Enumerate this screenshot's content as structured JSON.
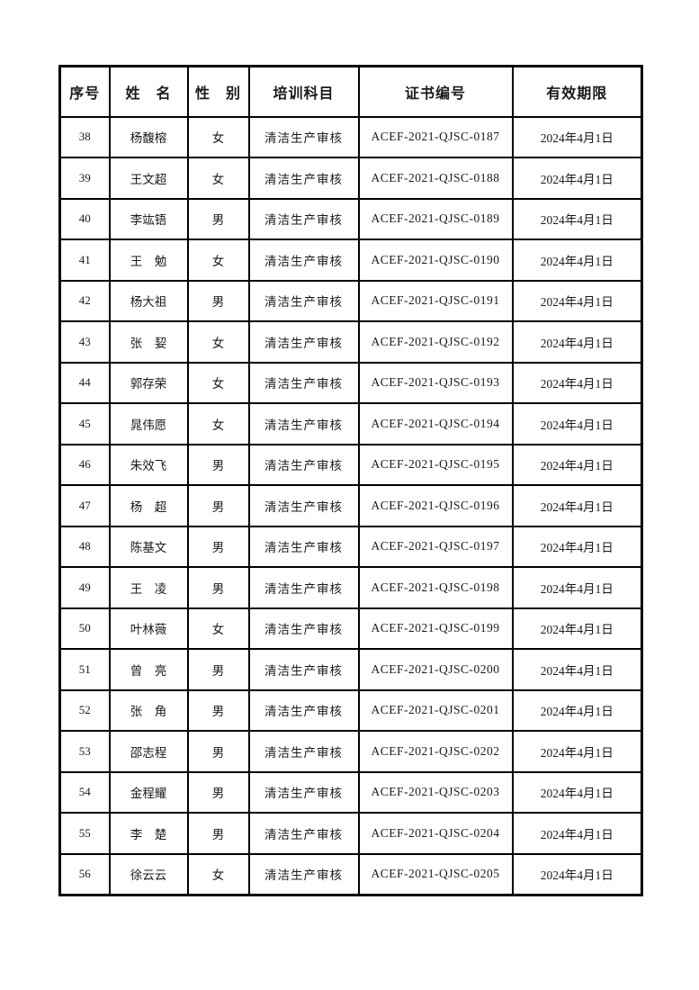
{
  "page": {
    "background_color": "#ffffff",
    "text_color": "#1a1a1a",
    "border_color": "#000000"
  },
  "table": {
    "headers": [
      "序号",
      "姓　名",
      "性　别",
      "培训科目",
      "证书编号",
      "有效期限"
    ],
    "rows": [
      {
        "no": "38",
        "name": "杨馥榕",
        "gender": "女",
        "subject": "清洁生产审核",
        "cert": "ACEF-2021-QJSC-0187",
        "expiry": "2024年4月1日"
      },
      {
        "no": "39",
        "name": "王文超",
        "gender": "女",
        "subject": "清洁生产审核",
        "cert": "ACEF-2021-QJSC-0188",
        "expiry": "2024年4月1日"
      },
      {
        "no": "40",
        "name": "李竑铻",
        "gender": "男",
        "subject": "清洁生产审核",
        "cert": "ACEF-2021-QJSC-0189",
        "expiry": "2024年4月1日"
      },
      {
        "no": "41",
        "name": "王　勉",
        "gender": "女",
        "subject": "清洁生产审核",
        "cert": "ACEF-2021-QJSC-0190",
        "expiry": "2024年4月1日"
      },
      {
        "no": "42",
        "name": "杨大祖",
        "gender": "男",
        "subject": "清洁生产审核",
        "cert": "ACEF-2021-QJSC-0191",
        "expiry": "2024年4月1日"
      },
      {
        "no": "43",
        "name": "张　㛃",
        "gender": "女",
        "subject": "清洁生产审核",
        "cert": "ACEF-2021-QJSC-0192",
        "expiry": "2024年4月1日"
      },
      {
        "no": "44",
        "name": "郭存荣",
        "gender": "女",
        "subject": "清洁生产审核",
        "cert": "ACEF-2021-QJSC-0193",
        "expiry": "2024年4月1日"
      },
      {
        "no": "45",
        "name": "晁伟愿",
        "gender": "女",
        "subject": "清洁生产审核",
        "cert": "ACEF-2021-QJSC-0194",
        "expiry": "2024年4月1日"
      },
      {
        "no": "46",
        "name": "朱效飞",
        "gender": "男",
        "subject": "清洁生产审核",
        "cert": "ACEF-2021-QJSC-0195",
        "expiry": "2024年4月1日"
      },
      {
        "no": "47",
        "name": "杨　超",
        "gender": "男",
        "subject": "清洁生产审核",
        "cert": "ACEF-2021-QJSC-0196",
        "expiry": "2024年4月1日"
      },
      {
        "no": "48",
        "name": "陈基文",
        "gender": "男",
        "subject": "清洁生产审核",
        "cert": "ACEF-2021-QJSC-0197",
        "expiry": "2024年4月1日"
      },
      {
        "no": "49",
        "name": "王　凌",
        "gender": "男",
        "subject": "清洁生产审核",
        "cert": "ACEF-2021-QJSC-0198",
        "expiry": "2024年4月1日"
      },
      {
        "no": "50",
        "name": "叶林薇",
        "gender": "女",
        "subject": "清洁生产审核",
        "cert": "ACEF-2021-QJSC-0199",
        "expiry": "2024年4月1日"
      },
      {
        "no": "51",
        "name": "曾　亮",
        "gender": "男",
        "subject": "清洁生产审核",
        "cert": "ACEF-2021-QJSC-0200",
        "expiry": "2024年4月1日"
      },
      {
        "no": "52",
        "name": "张　角",
        "gender": "男",
        "subject": "清洁生产审核",
        "cert": "ACEF-2021-QJSC-0201",
        "expiry": "2024年4月1日"
      },
      {
        "no": "53",
        "name": "邵志程",
        "gender": "男",
        "subject": "清洁生产审核",
        "cert": "ACEF-2021-QJSC-0202",
        "expiry": "2024年4月1日"
      },
      {
        "no": "54",
        "name": "金程耀",
        "gender": "男",
        "subject": "清洁生产审核",
        "cert": "ACEF-2021-QJSC-0203",
        "expiry": "2024年4月1日"
      },
      {
        "no": "55",
        "name": "李　楚",
        "gender": "男",
        "subject": "清洁生产审核",
        "cert": "ACEF-2021-QJSC-0204",
        "expiry": "2024年4月1日"
      },
      {
        "no": "56",
        "name": "徐云云",
        "gender": "女",
        "subject": "清洁生产审核",
        "cert": "ACEF-2021-QJSC-0205",
        "expiry": "2024年4月1日"
      }
    ]
  }
}
